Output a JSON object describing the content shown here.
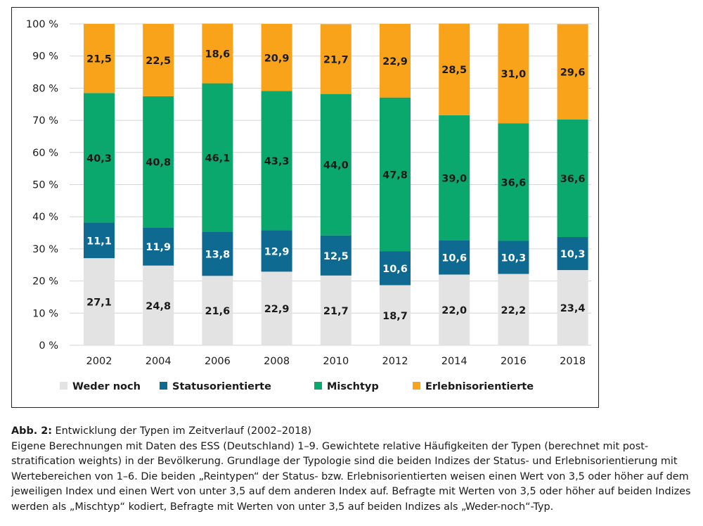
{
  "chart_data": {
    "type": "bar",
    "stacked": true,
    "categories": [
      "2002",
      "2004",
      "2006",
      "2008",
      "2010",
      "2012",
      "2014",
      "2016",
      "2018"
    ],
    "series": [
      {
        "name": "Weder noch",
        "color": "#e3e3e3",
        "label_color": "#1a1a1a",
        "values": [
          27.1,
          24.8,
          21.6,
          22.9,
          21.7,
          18.7,
          22.0,
          22.2,
          23.4
        ],
        "labels": [
          "27,1",
          "24,8",
          "21,6",
          "22,9",
          "21,7",
          "18,7",
          "22,0",
          "22,2",
          "23,4"
        ]
      },
      {
        "name": "Statusorientierte",
        "color": "#0f6a92",
        "label_color": "#ffffff",
        "values": [
          11.1,
          11.9,
          13.8,
          12.9,
          12.5,
          10.6,
          10.6,
          10.3,
          10.3
        ],
        "labels": [
          "11,1",
          "11,9",
          "13,8",
          "12,9",
          "12,5",
          "10,6",
          "10,6",
          "10,3",
          "10,3"
        ]
      },
      {
        "name": "Mischtyp",
        "color": "#0aa86c",
        "label_color": "#1a1a1a",
        "values": [
          40.3,
          40.8,
          46.1,
          43.3,
          44.0,
          47.8,
          39.0,
          36.6,
          36.6
        ],
        "labels": [
          "40,3",
          "40,8",
          "46,1",
          "43,3",
          "44,0",
          "47,8",
          "39,0",
          "36,6",
          "36,6"
        ]
      },
      {
        "name": "Erlebnisorientierte",
        "color": "#f9a31a",
        "label_color": "#1a1a1a",
        "values": [
          21.5,
          22.5,
          18.6,
          20.9,
          21.7,
          22.9,
          28.5,
          31.0,
          29.6
        ],
        "labels": [
          "21,5",
          "22,5",
          "18,6",
          "20,9",
          "21,7",
          "22,9",
          "28,5",
          "31,0",
          "29,6"
        ]
      }
    ],
    "ylim": [
      0,
      100
    ],
    "yticks": [
      0,
      10,
      20,
      30,
      40,
      50,
      60,
      70,
      80,
      90,
      100
    ],
    "ytick_labels": [
      "0 %",
      "10 %",
      "20 %",
      "30 %",
      "40 %",
      "50 %",
      "60 %",
      "70 %",
      "80 %",
      "90 %",
      "100 %"
    ],
    "grid": true,
    "legend_position": "bottom",
    "xlabel": "",
    "ylabel": ""
  },
  "caption": {
    "label": "Abb. 2:",
    "title": " Entwicklung der Typen im Zeitverlauf (2002–2018)",
    "text": "Eigene Berechnungen mit Daten des ESS (Deutschland) 1–9. Gewichtete relative Häufigkeiten der Typen (berechnet mit post-stratification weights) in der Bevölkerung. Grundlage der Typologie sind die beiden Indizes der Status- und Erlebnisorientierung mit Wertebereichen von 1–6. Die beiden „Reintypen“ der Status- bzw. Erlebnisorientierten weisen einen Wert von 3,5 oder höher auf dem jeweiligen Index und einen Wert von unter 3,5 auf dem anderen Index auf. Befragte mit Werten von 3,5 oder höher auf beiden Indizes werden als „Mischtyp“ kodiert, Befragte mit Werten von unter 3,5 auf beiden Indizes als „Weder-noch“-Typ."
  }
}
